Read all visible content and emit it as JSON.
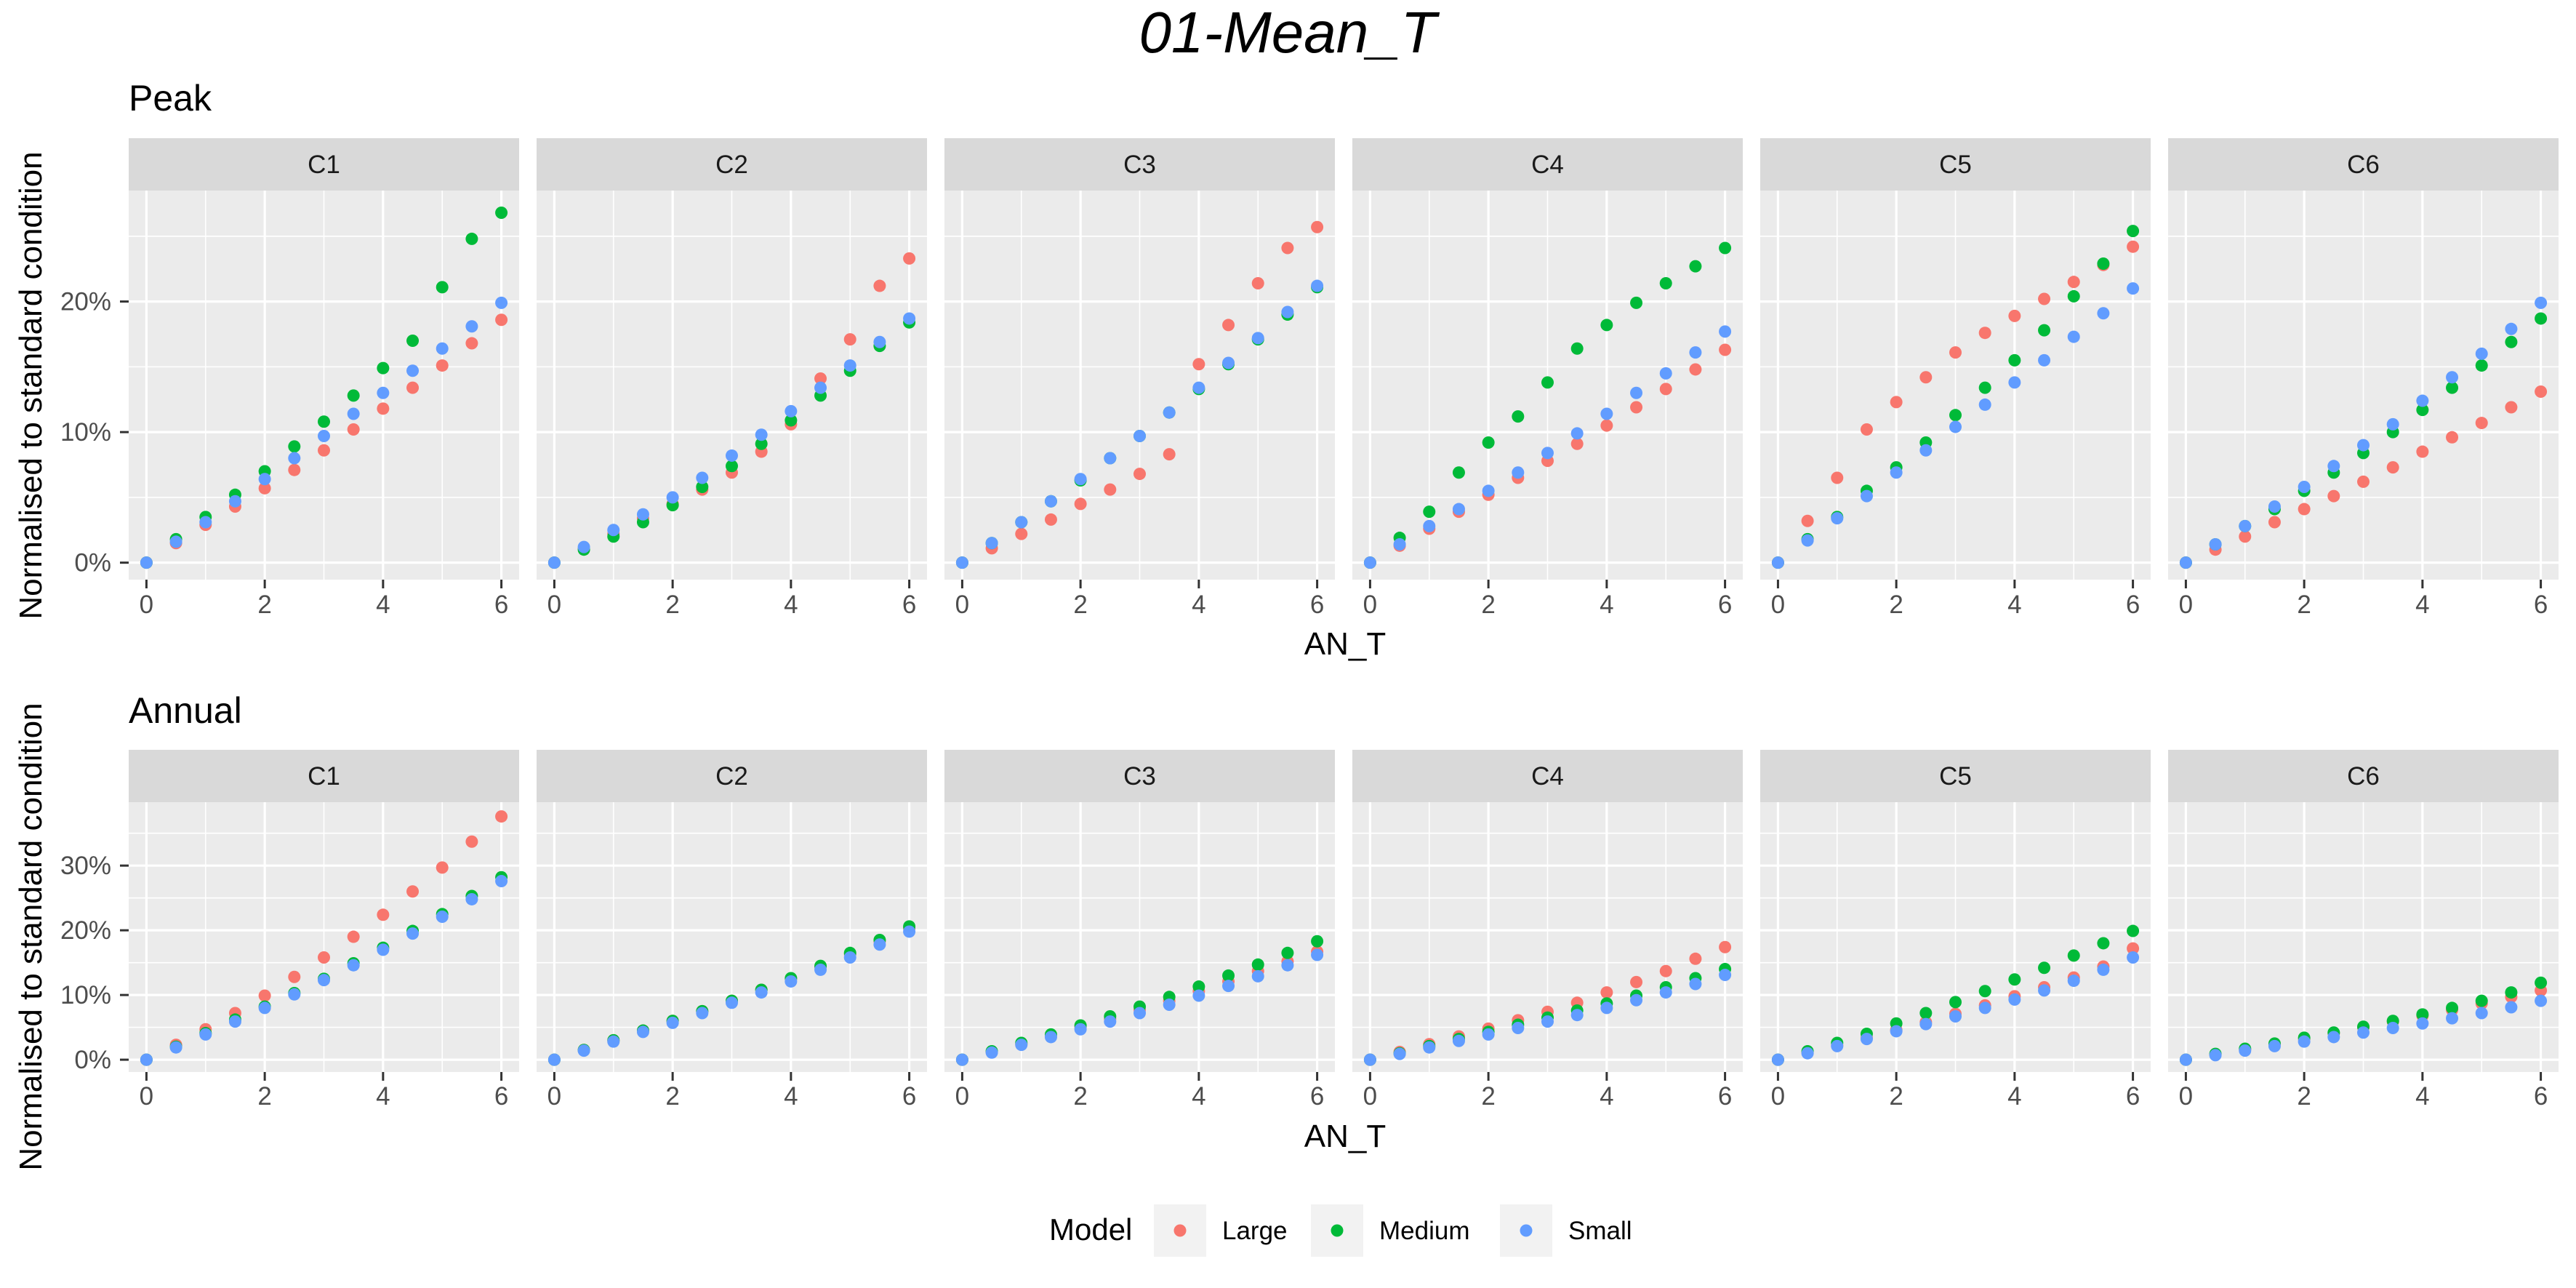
{
  "title": "01-Mean_T",
  "legend": {
    "title": "Model",
    "position": "bottom"
  },
  "colors": {
    "Large": "#F8766D",
    "Medium": "#00BA38",
    "Small": "#619CFF",
    "panel_bg": "#EBEBEB",
    "strip_bg": "#D9D9D9",
    "grid": "#FFFFFF"
  },
  "chart_data": [
    {
      "type": "scatter",
      "title": "Peak",
      "xlabel": "AN_T",
      "ylabel": "Normalised to standard condition",
      "x": [
        0,
        0.5,
        1,
        1.5,
        2,
        2.5,
        3,
        3.5,
        4,
        4.5,
        5,
        5.5,
        6
      ],
      "xlim": [
        -0.3,
        6.3
      ],
      "xticks": [
        0,
        2,
        4,
        6
      ],
      "ylim": [
        -0.013,
        0.285
      ],
      "yticks": [
        0,
        0.1,
        0.2
      ],
      "ytick_labels": [
        "0%",
        "10%",
        "20%"
      ],
      "grid": true,
      "facets": [
        {
          "name": "C1",
          "series": [
            {
              "name": "Large",
              "values": [
                0,
                0.015,
                0.029,
                0.043,
                0.057,
                0.071,
                0.086,
                0.102,
                0.118,
                0.134,
                0.151,
                0.168,
                0.186
              ]
            },
            {
              "name": "Medium",
              "values": [
                0,
                0.018,
                0.035,
                0.052,
                0.07,
                0.089,
                0.108,
                0.128,
                0.149,
                0.17,
                0.211,
                0.248,
                0.268
              ]
            },
            {
              "name": "Small",
              "values": [
                0,
                0.016,
                0.031,
                0.047,
                0.064,
                0.08,
                0.097,
                0.114,
                0.13,
                0.147,
                0.164,
                0.181,
                0.199
              ]
            }
          ]
        },
        {
          "name": "C2",
          "series": [
            {
              "name": "Large",
              "values": [
                0,
                0.011,
                0.022,
                0.034,
                0.045,
                0.056,
                0.069,
                0.085,
                0.106,
                0.141,
                0.171,
                0.212,
                0.233
              ]
            },
            {
              "name": "Medium",
              "values": [
                0,
                0.01,
                0.02,
                0.031,
                0.044,
                0.058,
                0.074,
                0.091,
                0.109,
                0.128,
                0.147,
                0.166,
                0.184
              ]
            },
            {
              "name": "Small",
              "values": [
                0,
                0.012,
                0.025,
                0.037,
                0.05,
                0.065,
                0.082,
                0.098,
                0.116,
                0.134,
                0.151,
                0.169,
                0.187
              ]
            }
          ]
        },
        {
          "name": "C3",
          "series": [
            {
              "name": "Large",
              "values": [
                0,
                0.011,
                0.022,
                0.033,
                0.045,
                0.056,
                0.068,
                0.083,
                0.152,
                0.182,
                0.214,
                0.241,
                0.257
              ]
            },
            {
              "name": "Medium",
              "values": [
                0,
                0.015,
                0.031,
                0.047,
                0.063,
                0.08,
                0.097,
                0.115,
                0.133,
                0.152,
                0.171,
                0.19,
                0.211
              ]
            },
            {
              "name": "Small",
              "values": [
                0,
                0.015,
                0.031,
                0.047,
                0.064,
                0.08,
                0.097,
                0.115,
                0.134,
                0.153,
                0.172,
                0.192,
                0.212
              ]
            }
          ]
        },
        {
          "name": "C4",
          "series": [
            {
              "name": "Large",
              "values": [
                0,
                0.013,
                0.026,
                0.039,
                0.052,
                0.065,
                0.078,
                0.091,
                0.105,
                0.119,
                0.133,
                0.148,
                0.163
              ]
            },
            {
              "name": "Medium",
              "values": [
                0,
                0.019,
                0.039,
                0.069,
                0.092,
                0.112,
                0.138,
                0.164,
                0.182,
                0.199,
                0.214,
                0.227,
                0.241
              ]
            },
            {
              "name": "Small",
              "values": [
                0,
                0.014,
                0.028,
                0.041,
                0.055,
                0.069,
                0.084,
                0.099,
                0.114,
                0.13,
                0.145,
                0.161,
                0.177
              ]
            }
          ]
        },
        {
          "name": "C5",
          "series": [
            {
              "name": "Large",
              "values": [
                0,
                0.032,
                0.065,
                0.102,
                0.123,
                0.142,
                0.161,
                0.176,
                0.189,
                0.202,
                0.215,
                0.228,
                0.242
              ]
            },
            {
              "name": "Medium",
              "values": [
                0,
                0.018,
                0.035,
                0.055,
                0.073,
                0.092,
                0.113,
                0.134,
                0.155,
                0.178,
                0.204,
                0.229,
                0.254
              ]
            },
            {
              "name": "Small",
              "values": [
                0,
                0.017,
                0.034,
                0.051,
                0.069,
                0.086,
                0.104,
                0.121,
                0.138,
                0.155,
                0.173,
                0.191,
                0.21
              ]
            }
          ]
        },
        {
          "name": "C6",
          "series": [
            {
              "name": "Large",
              "values": [
                0,
                0.01,
                0.02,
                0.031,
                0.041,
                0.051,
                0.062,
                0.073,
                0.085,
                0.096,
                0.107,
                0.119,
                0.131
              ]
            },
            {
              "name": "Medium",
              "values": [
                0,
                0.014,
                0.028,
                0.041,
                0.055,
                0.069,
                0.084,
                0.1,
                0.117,
                0.134,
                0.151,
                0.169,
                0.187
              ]
            },
            {
              "name": "Small",
              "values": [
                0,
                0.014,
                0.028,
                0.043,
                0.058,
                0.074,
                0.09,
                0.106,
                0.124,
                0.142,
                0.16,
                0.179,
                0.199
              ]
            }
          ]
        }
      ]
    },
    {
      "type": "scatter",
      "title": "Annual",
      "xlabel": "AN_T",
      "ylabel": "Normalised to standard condition",
      "x": [
        0,
        0.5,
        1,
        1.5,
        2,
        2.5,
        3,
        3.5,
        4,
        4.5,
        5,
        5.5,
        6
      ],
      "xlim": [
        -0.3,
        6.3
      ],
      "xticks": [
        0,
        2,
        4,
        6
      ],
      "ylim": [
        -0.019,
        0.398
      ],
      "yticks": [
        0,
        0.1,
        0.2,
        0.3
      ],
      "ytick_labels": [
        "0%",
        "10%",
        "20%",
        "30%"
      ],
      "grid": true,
      "facets": [
        {
          "name": "C1",
          "series": [
            {
              "name": "Large",
              "values": [
                0,
                0.023,
                0.047,
                0.072,
                0.099,
                0.128,
                0.158,
                0.19,
                0.224,
                0.26,
                0.297,
                0.337,
                0.376
              ]
            },
            {
              "name": "Medium",
              "values": [
                0,
                0.02,
                0.041,
                0.062,
                0.082,
                0.103,
                0.125,
                0.149,
                0.173,
                0.199,
                0.225,
                0.253,
                0.282
              ]
            },
            {
              "name": "Small",
              "values": [
                0,
                0.019,
                0.039,
                0.059,
                0.08,
                0.101,
                0.123,
                0.146,
                0.17,
                0.195,
                0.221,
                0.248,
                0.276
              ]
            }
          ]
        },
        {
          "name": "C2",
          "series": [
            {
              "name": "Large",
              "values": [
                0,
                0.015,
                0.03,
                0.045,
                0.06,
                0.075,
                0.091,
                0.108,
                0.125,
                0.143,
                0.163,
                0.183,
                0.203
              ]
            },
            {
              "name": "Medium",
              "values": [
                0,
                0.015,
                0.03,
                0.045,
                0.06,
                0.075,
                0.091,
                0.108,
                0.126,
                0.145,
                0.165,
                0.185,
                0.206
              ]
            },
            {
              "name": "Small",
              "values": [
                0,
                0.014,
                0.028,
                0.043,
                0.057,
                0.072,
                0.088,
                0.104,
                0.121,
                0.139,
                0.158,
                0.178,
                0.198
              ]
            }
          ]
        },
        {
          "name": "C3",
          "series": [
            {
              "name": "Large",
              "values": [
                0,
                0.012,
                0.024,
                0.036,
                0.05,
                0.063,
                0.077,
                0.091,
                0.106,
                0.121,
                0.137,
                0.152,
                0.167
              ]
            },
            {
              "name": "Medium",
              "values": [
                0,
                0.013,
                0.026,
                0.039,
                0.053,
                0.067,
                0.082,
                0.097,
                0.113,
                0.13,
                0.147,
                0.165,
                0.183
              ]
            },
            {
              "name": "Small",
              "values": [
                0,
                0.011,
                0.023,
                0.035,
                0.047,
                0.059,
                0.072,
                0.085,
                0.099,
                0.114,
                0.129,
                0.146,
                0.162
              ]
            }
          ]
        },
        {
          "name": "C4",
          "series": [
            {
              "name": "Large",
              "values": [
                0,
                0.012,
                0.024,
                0.036,
                0.048,
                0.061,
                0.074,
                0.088,
                0.104,
                0.12,
                0.137,
                0.156,
                0.174
              ]
            },
            {
              "name": "Medium",
              "values": [
                0,
                0.01,
                0.021,
                0.032,
                0.043,
                0.054,
                0.065,
                0.076,
                0.087,
                0.099,
                0.112,
                0.126,
                0.14
              ]
            },
            {
              "name": "Small",
              "values": [
                0,
                0.009,
                0.019,
                0.029,
                0.039,
                0.049,
                0.059,
                0.069,
                0.08,
                0.092,
                0.104,
                0.117,
                0.131
              ]
            }
          ]
        },
        {
          "name": "C5",
          "series": [
            {
              "name": "Large",
              "values": [
                0,
                0.011,
                0.022,
                0.034,
                0.046,
                0.058,
                0.071,
                0.084,
                0.098,
                0.112,
                0.127,
                0.144,
                0.172
              ]
            },
            {
              "name": "Medium",
              "values": [
                0,
                0.013,
                0.026,
                0.04,
                0.056,
                0.072,
                0.089,
                0.106,
                0.124,
                0.142,
                0.161,
                0.18,
                0.199
              ]
            },
            {
              "name": "Small",
              "values": [
                0,
                0.01,
                0.021,
                0.032,
                0.044,
                0.055,
                0.067,
                0.08,
                0.093,
                0.107,
                0.122,
                0.139,
                0.158
              ]
            }
          ]
        },
        {
          "name": "C6",
          "series": [
            {
              "name": "Large",
              "values": [
                0,
                0.008,
                0.016,
                0.024,
                0.032,
                0.041,
                0.05,
                0.059,
                0.068,
                0.077,
                0.087,
                0.097,
                0.107
              ]
            },
            {
              "name": "Medium",
              "values": [
                0,
                0.009,
                0.017,
                0.025,
                0.034,
                0.042,
                0.051,
                0.06,
                0.07,
                0.08,
                0.091,
                0.104,
                0.119
              ]
            },
            {
              "name": "Small",
              "values": [
                0,
                0.007,
                0.014,
                0.021,
                0.028,
                0.035,
                0.042,
                0.049,
                0.056,
                0.064,
                0.072,
                0.081,
                0.091
              ]
            }
          ]
        }
      ]
    }
  ]
}
